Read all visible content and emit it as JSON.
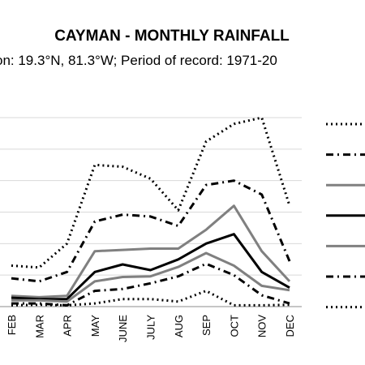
{
  "chart_data": {
    "type": "line",
    "title": "CAYMAN - MONTHLY RAINFALL",
    "subtitle": "on: 19.3°N, 81.3°W; Period of record: 1971-20",
    "categories": [
      "FEB",
      "MAR",
      "APR",
      "MAY",
      "JUNE",
      "JULY",
      "AUG",
      "SEP",
      "OCT",
      "NOV",
      "DEC"
    ],
    "ylim": [
      0,
      300
    ],
    "grid": true,
    "legend": "right",
    "series": [
      {
        "values": [
          65,
          62,
          100,
          225,
          222,
          203,
          153,
          262,
          290,
          300,
          160
        ],
        "style": "dotted",
        "color": "#000000"
      },
      {
        "values": [
          45,
          40,
          55,
          135,
          146,
          143,
          128,
          193,
          200,
          178,
          72
        ],
        "style": "dashdot",
        "color": "#000000"
      },
      {
        "values": [
          17,
          15,
          17,
          88,
          90,
          92,
          92,
          122,
          160,
          88,
          40
        ],
        "style": "solid",
        "color": "#808080"
      },
      {
        "values": [
          14,
          12,
          12,
          55,
          67,
          58,
          75,
          100,
          115,
          55,
          30
        ],
        "style": "solid",
        "color": "#000000"
      },
      {
        "values": [
          10,
          10,
          8,
          40,
          47,
          48,
          63,
          85,
          65,
          33,
          26
        ],
        "style": "solid",
        "color": "#808080"
      },
      {
        "values": [
          5,
          5,
          2,
          25,
          28,
          37,
          48,
          68,
          50,
          18,
          5
        ],
        "style": "dashdot",
        "color": "#000000"
      },
      {
        "values": [
          2,
          3,
          2,
          5,
          12,
          12,
          8,
          25,
          2,
          2,
          3
        ],
        "style": "dotted",
        "color": "#000000"
      }
    ]
  }
}
